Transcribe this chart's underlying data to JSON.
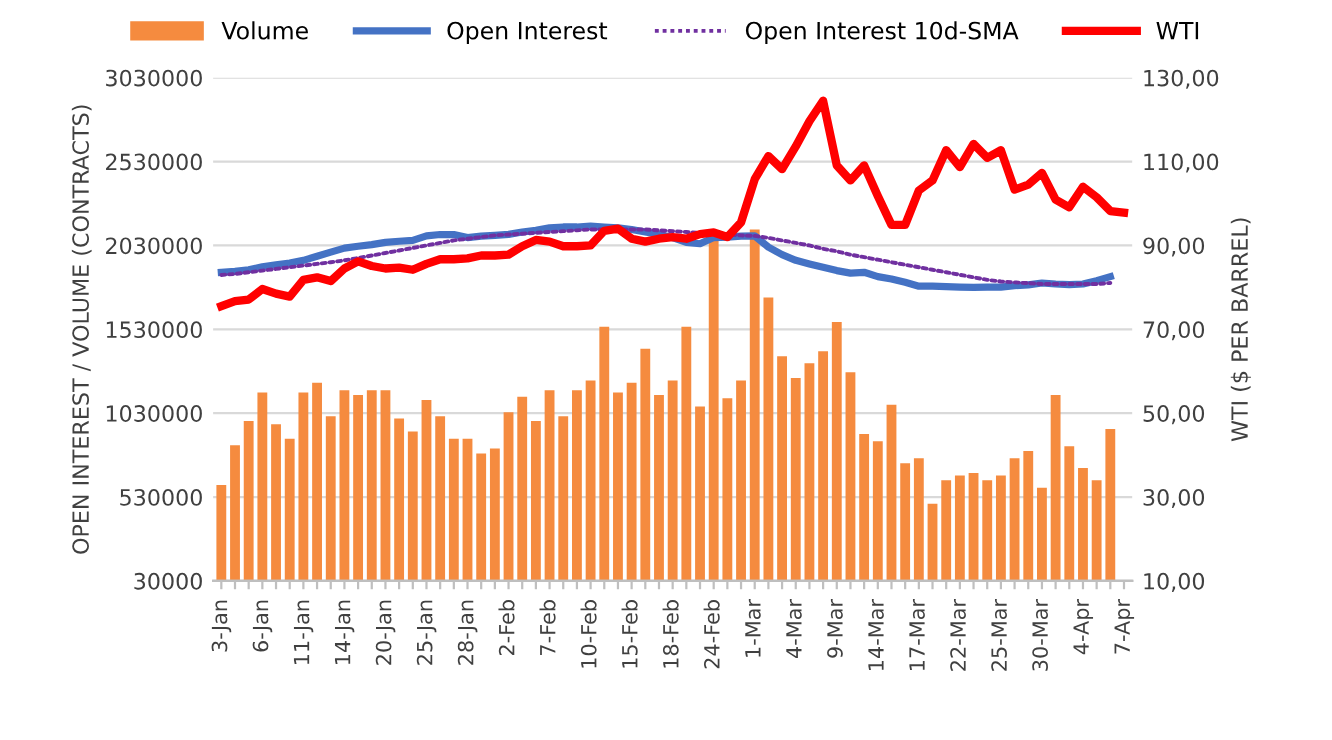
{
  "chart_data": {
    "type": "bar",
    "categories": [
      "3-Jan",
      null,
      null,
      "6-Jan",
      null,
      null,
      "11-Jan",
      null,
      null,
      "14-Jan",
      null,
      null,
      "20-Jan",
      null,
      null,
      "25-Jan",
      null,
      null,
      "28-Jan",
      null,
      null,
      "2-Feb",
      null,
      null,
      "7-Feb",
      null,
      null,
      "10-Feb",
      null,
      null,
      "15-Feb",
      null,
      null,
      "18-Feb",
      null,
      null,
      "24-Feb",
      null,
      null,
      "1-Mar",
      null,
      null,
      "4-Mar",
      null,
      null,
      "9-Mar",
      null,
      null,
      "14-Mar",
      null,
      null,
      "17-Mar",
      null,
      null,
      "22-Mar",
      null,
      null,
      "25-Mar",
      null,
      null,
      "30-Mar",
      null,
      null,
      "4-Apr",
      null,
      null,
      "7-Apr"
    ],
    "series": [
      {
        "name": "Volume",
        "color": "#f58b3f",
        "values": [
          601000,
          838000,
          983000,
          1153000,
          964000,
          877000,
          1153000,
          1211000,
          1012000,
          1167000,
          1138000,
          1167000,
          1167000,
          998000,
          920000,
          1109000,
          1012000,
          877000,
          877000,
          790000,
          819000,
          1036000,
          1128000,
          983000,
          1167000,
          1012000,
          1167000,
          1225000,
          1545000,
          1153000,
          1211000,
          1414000,
          1138000,
          1225000,
          1545000,
          1070000,
          2062000,
          1119000,
          1225000,
          2125000,
          1719000,
          1370000,
          1240000,
          1327000,
          1399000,
          1574000,
          1274000,
          906000,
          862000,
          1080000,
          732000,
          761000,
          490000,
          630000,
          659000,
          674000,
          630000,
          659000,
          761000,
          804000,
          586000,
          1138000,
          833000,
          703000,
          630000,
          935000,
          null
        ]
      },
      {
        "name": "Open Interest",
        "type": "line",
        "color": "#4472c4",
        "values": [
          1869000,
          1875000,
          1885000,
          1903000,
          1915000,
          1925000,
          1941000,
          1965000,
          1990000,
          2014000,
          2025000,
          2035000,
          2048000,
          2055000,
          2060000,
          2087000,
          2095000,
          2095000,
          2077000,
          2085000,
          2090000,
          2096000,
          2110000,
          2120000,
          2135000,
          2140000,
          2140000,
          2145000,
          2140000,
          2135000,
          2125000,
          2110000,
          2095000,
          2077000,
          2048000,
          2040000,
          2077000,
          2080000,
          2085000,
          2087000,
          2020000,
          1975000,
          1941000,
          1920000,
          1900000,
          1880000,
          1865000,
          1870000,
          1844000,
          1830000,
          1810000,
          1787000,
          1787000,
          1785000,
          1782000,
          1780000,
          1782000,
          1782000,
          1790000,
          1795000,
          1806000,
          1800000,
          1796000,
          1800000,
          1820000,
          1844000,
          null
        ]
      },
      {
        "name": "Open Interest 10d-SMA",
        "type": "line",
        "line_style": "dotted",
        "color": "#7030a0",
        "values": [
          1854000,
          1860000,
          1870000,
          1880000,
          1890000,
          1900000,
          1910000,
          1920000,
          1930000,
          1941000,
          1955000,
          1970000,
          1985000,
          2000000,
          2015000,
          2030000,
          2045000,
          2060000,
          2070000,
          2080000,
          2090000,
          2095000,
          2100000,
          2105000,
          2110000,
          2115000,
          2120000,
          2125000,
          2125000,
          2125000,
          2125000,
          2125000,
          2120000,
          2115000,
          2110000,
          2105000,
          2100000,
          2095000,
          2090000,
          2087000,
          2075000,
          2060000,
          2045000,
          2030000,
          2010000,
          1995000,
          1975000,
          1960000,
          1945000,
          1930000,
          1915000,
          1900000,
          1885000,
          1870000,
          1855000,
          1840000,
          1825000,
          1815000,
          1810000,
          1805000,
          1800000,
          1800000,
          1800000,
          1800000,
          1800000,
          1806000,
          null
        ]
      },
      {
        "name": "WTI",
        "type": "line",
        "axis": "y2",
        "color": "#ff0000",
        "values": [
          75.5,
          76.7,
          77.1,
          79.6,
          78.5,
          77.8,
          81.8,
          82.4,
          81.5,
          84.5,
          86.2,
          85.1,
          84.5,
          84.7,
          84.2,
          85.6,
          86.7,
          86.7,
          86.9,
          87.6,
          87.6,
          87.8,
          89.8,
          91.3,
          90.9,
          89.8,
          89.8,
          90.0,
          93.5,
          94.0,
          91.6,
          90.9,
          91.6,
          92.0,
          91.6,
          92.7,
          93.1,
          92.0,
          95.5,
          105.8,
          111.3,
          108.2,
          113.6,
          119.6,
          124.5,
          109.1,
          105.5,
          109.1,
          101.8,
          94.9,
          94.9,
          103.1,
          105.5,
          112.7,
          108.7,
          114.2,
          110.9,
          112.7,
          103.3,
          104.5,
          107.3,
          100.9,
          99.1,
          104.0,
          101.5,
          98.2,
          97.8
        ]
      }
    ],
    "ylabel": "OPEN INTEREST / VOLUME (CONTRACTS)",
    "y2label": "WTI ($ PER BARREL)",
    "ylim": [
      30000,
      3030000
    ],
    "yticks": [
      30000,
      530000,
      1030000,
      1530000,
      2030000,
      2530000,
      3030000
    ],
    "y2lim": [
      10,
      130
    ],
    "y2ticks": [
      {
        "value": 10,
        "label": "10,00"
      },
      {
        "value": 30,
        "label": "30,00"
      },
      {
        "value": 50,
        "label": "50,00"
      },
      {
        "value": 70,
        "label": "70,00"
      },
      {
        "value": 90,
        "label": "90,00"
      },
      {
        "value": 110,
        "label": "110,00"
      },
      {
        "value": 130,
        "label": "130,00"
      }
    ],
    "grid": "y",
    "legend": "top"
  }
}
